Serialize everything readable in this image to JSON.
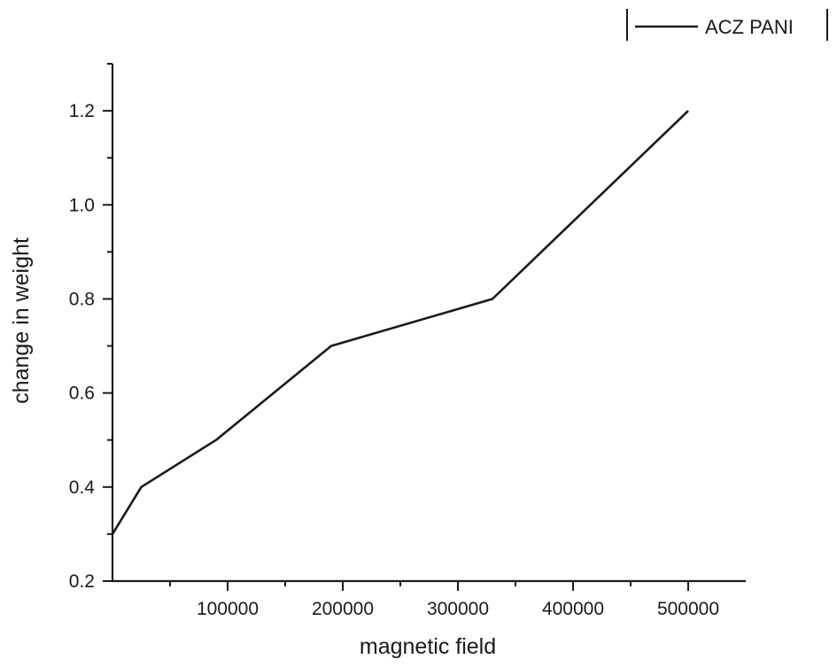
{
  "chart_data": {
    "type": "line",
    "title": "",
    "xlabel": "magnetic field",
    "ylabel": "change in weight",
    "x": [
      0,
      25000,
      90000,
      190000,
      330000,
      500000
    ],
    "series": [
      {
        "name": "ACZ PANI",
        "color": "#1a1a1a",
        "values": [
          0.3,
          0.4,
          0.5,
          0.7,
          0.8,
          1.2
        ]
      }
    ],
    "xlim": [
      0,
      550000
    ],
    "ylim": [
      0.2,
      1.3
    ],
    "xticks": [
      100000,
      200000,
      300000,
      400000,
      500000
    ],
    "xtick_labels": [
      "100000",
      "200000",
      "300000",
      "400000",
      "500000"
    ],
    "yticks": [
      0.2,
      0.4,
      0.6,
      0.8,
      1.0,
      1.2
    ],
    "ytick_labels": [
      "0.2",
      "0.4",
      "0.6",
      "0.8",
      "1.0",
      "1.2"
    ],
    "grid": false,
    "legend_position": "top-right"
  }
}
